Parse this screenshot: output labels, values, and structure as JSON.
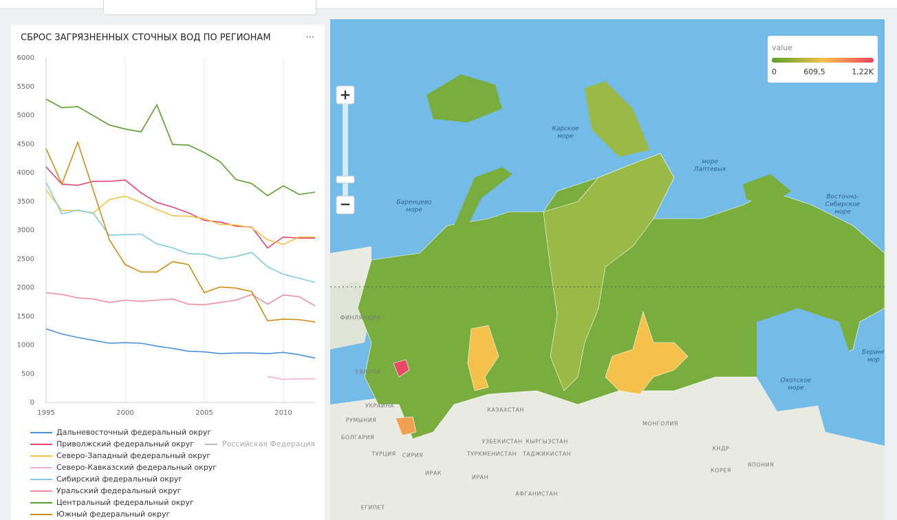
{
  "chart_data": {
    "type": "line",
    "title": "СБРОС ЗАГРЯЗНЕННЫХ СТОЧНЫХ ВОД ПО РЕГИОНАМ",
    "menu": "···",
    "x": [
      1995,
      1996,
      1997,
      1998,
      1999,
      2000,
      2001,
      2002,
      2003,
      2004,
      2005,
      2006,
      2007,
      2008,
      2009,
      2010,
      2011,
      2012
    ],
    "xlim": [
      1995,
      2012
    ],
    "xticks": [
      1995,
      2000,
      2005,
      2010
    ],
    "ylim": [
      0,
      6000
    ],
    "yticks": [
      0,
      500,
      1000,
      1500,
      2000,
      2500,
      3000,
      3500,
      4000,
      4500,
      5000,
      5500,
      6000
    ],
    "grid": true,
    "series": [
      {
        "name": "Дальневосточный федеральный округ",
        "color": "#4a90d9",
        "values": [
          1280,
          1190,
          1130,
          1080,
          1030,
          1040,
          1030,
          980,
          940,
          890,
          880,
          850,
          860,
          860,
          850,
          870,
          830,
          770
        ]
      },
      {
        "name": "Приволжский федеральный округ",
        "color": "#e8436e",
        "values": [
          4100,
          3800,
          3780,
          3850,
          3850,
          3870,
          3650,
          3480,
          3400,
          3300,
          3170,
          3140,
          3070,
          3050,
          2690,
          2880,
          2860,
          2860
        ]
      },
      {
        "name": "Северо-Западный федеральный округ",
        "color": "#f5c242",
        "values": [
          3700,
          3340,
          3340,
          3300,
          3530,
          3590,
          3480,
          3360,
          3250,
          3240,
          3200,
          3100,
          3090,
          3040,
          2830,
          2750,
          2880,
          2880
        ]
      },
      {
        "name": "Северо-Кавказский федеральный округ",
        "color": "#f7aed8",
        "values": [
          null,
          null,
          null,
          null,
          null,
          null,
          null,
          null,
          null,
          null,
          null,
          null,
          null,
          null,
          450,
          400,
          410,
          410
        ]
      },
      {
        "name": "Сибирский федеральный округ",
        "color": "#7fcbe0",
        "values": [
          3830,
          3280,
          3350,
          3290,
          2910,
          2920,
          2930,
          2760,
          2690,
          2590,
          2580,
          2500,
          2540,
          2610,
          2360,
          2230,
          2160,
          2090
        ]
      },
      {
        "name": "Уральский федеральный округ",
        "color": "#f28da0",
        "values": [
          1910,
          1880,
          1820,
          1800,
          1740,
          1780,
          1760,
          1780,
          1800,
          1710,
          1700,
          1740,
          1780,
          1880,
          1710,
          1870,
          1840,
          1680
        ]
      },
      {
        "name": "Центральный федеральный округ",
        "color": "#5aa02c",
        "values": [
          5280,
          5130,
          5150,
          4990,
          4830,
          4760,
          4710,
          5180,
          4490,
          4480,
          4350,
          4190,
          3880,
          3810,
          3600,
          3770,
          3620,
          3660
        ]
      },
      {
        "name": "Южный федеральный округ",
        "color": "#d08c14",
        "values": [
          4420,
          3800,
          4530,
          3680,
          2830,
          2400,
          2270,
          2270,
          2450,
          2400,
          1910,
          2010,
          1990,
          1930,
          1420,
          1450,
          1440,
          1400
        ]
      }
    ],
    "legend_disabled": {
      "name": "Российская Федерация",
      "color": "#bbbbbb"
    }
  },
  "map": {
    "zoom_in": "+",
    "zoom_out": "−",
    "legend": {
      "title": "value",
      "labels": [
        "0",
        "609,5",
        "1,22K"
      ]
    },
    "seas": [
      "Карское",
      "море",
      "море",
      "Лаптевых",
      "Баренцево",
      "море",
      "Восточно-",
      "Сибирское",
      "море",
      "Охотское",
      "море",
      "Беринг",
      "мор"
    ],
    "countries": [
      "ФИНЛЯНДИЯ",
      "ЕВРОПА",
      "УКРАИНА",
      "РУМЫНИЯ",
      "БОЛГАРИЯ",
      "ТУРЦИЯ",
      "КАЗАХСТАН",
      "УЗБЕКИСТАН",
      "КЫРГЫЗСТАН",
      "ТУРКМЕНИСТАН",
      "ТАДЖИКИСТАН",
      "МОНГОЛИЯ",
      "ИРАН",
      "ИРАК",
      "СИРИЯ",
      "ЕГИПЕТ",
      "КНДР",
      "КОРЕЯ",
      "ЯПОНИЯ",
      "АФГАНИСТАН"
    ]
  }
}
